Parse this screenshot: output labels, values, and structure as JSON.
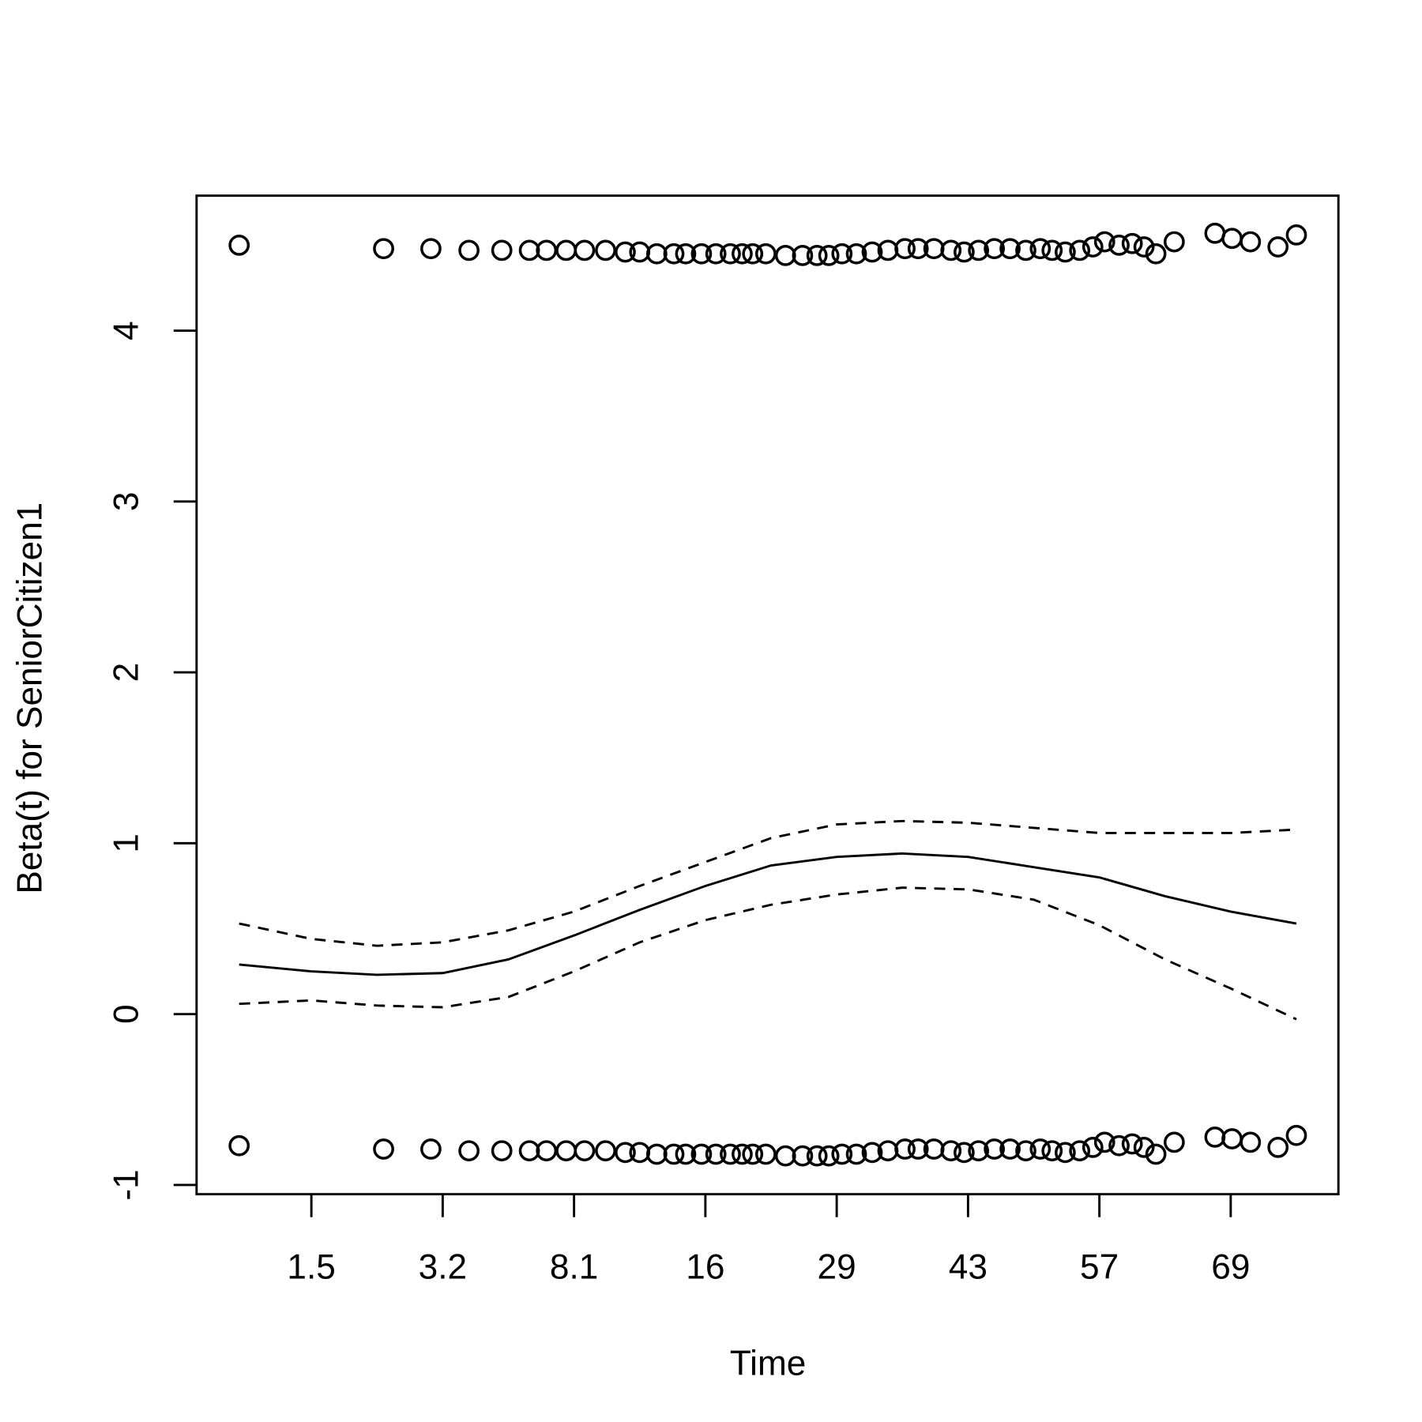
{
  "chart_data": {
    "type": "line",
    "xlabel": "Time",
    "ylabel": "Beta(t) for SeniorCitizen1",
    "color": "#000000",
    "xlim": [
      0.0126,
      0.882
    ],
    "xticks": [
      {
        "value": 0.1,
        "label": "1.5"
      },
      {
        "value": 0.2,
        "label": "3.2"
      },
      {
        "value": 0.3,
        "label": "8.1"
      },
      {
        "value": 0.4,
        "label": "16"
      },
      {
        "value": 0.5,
        "label": "29"
      },
      {
        "value": 0.6,
        "label": "43"
      },
      {
        "value": 0.7,
        "label": "57"
      },
      {
        "value": 0.8,
        "label": "69"
      }
    ],
    "ylim": [
      -1.054,
      4.79
    ],
    "yticks": [
      -1,
      0,
      1,
      2,
      3,
      4
    ],
    "x": [
      0.045,
      0.1,
      0.15,
      0.2,
      0.25,
      0.3,
      0.35,
      0.4,
      0.45,
      0.5,
      0.55,
      0.6,
      0.65,
      0.7,
      0.75,
      0.8,
      0.85
    ],
    "series": [
      {
        "style": "solid",
        "values": [
          0.29,
          0.25,
          0.23,
          0.24,
          0.32,
          0.46,
          0.61,
          0.75,
          0.87,
          0.92,
          0.94,
          0.92,
          0.86,
          0.8,
          0.69,
          0.6,
          0.53
        ]
      },
      {
        "style": "dashed",
        "values": [
          0.53,
          0.44,
          0.4,
          0.42,
          0.49,
          0.6,
          0.75,
          0.89,
          1.03,
          1.11,
          1.13,
          1.12,
          1.09,
          1.06,
          1.06,
          1.06,
          1.08
        ]
      },
      {
        "style": "dashed",
        "values": [
          0.06,
          0.08,
          0.05,
          0.04,
          0.1,
          0.25,
          0.42,
          0.55,
          0.64,
          0.7,
          0.74,
          0.73,
          0.67,
          0.52,
          0.32,
          0.15,
          -0.03
        ]
      }
    ],
    "points": {
      "x": [
        0.045,
        0.155,
        0.191,
        0.22,
        0.245,
        0.266,
        0.279,
        0.294,
        0.308,
        0.324,
        0.339,
        0.35,
        0.363,
        0.376,
        0.385,
        0.397,
        0.408,
        0.419,
        0.428,
        0.436,
        0.446,
        0.461,
        0.474,
        0.485,
        0.494,
        0.504,
        0.515,
        0.527,
        0.539,
        0.552,
        0.562,
        0.574,
        0.587,
        0.597,
        0.608,
        0.62,
        0.632,
        0.644,
        0.655,
        0.664,
        0.674,
        0.685,
        0.695,
        0.704,
        0.715,
        0.725,
        0.734,
        0.743,
        0.757,
        0.788,
        0.801,
        0.815,
        0.836,
        0.85
      ],
      "series": [
        {
          "values": [
            4.5,
            4.48,
            4.48,
            4.47,
            4.47,
            4.47,
            4.47,
            4.47,
            4.47,
            4.47,
            4.46,
            4.46,
            4.45,
            4.45,
            4.45,
            4.45,
            4.45,
            4.45,
            4.45,
            4.45,
            4.45,
            4.44,
            4.44,
            4.44,
            4.44,
            4.45,
            4.45,
            4.46,
            4.47,
            4.48,
            4.48,
            4.48,
            4.47,
            4.46,
            4.47,
            4.48,
            4.48,
            4.47,
            4.48,
            4.47,
            4.46,
            4.47,
            4.49,
            4.52,
            4.5,
            4.51,
            4.49,
            4.45,
            4.52,
            4.57,
            4.54,
            4.52,
            4.49,
            4.56
          ]
        },
        {
          "values": [
            -0.77,
            -0.79,
            -0.79,
            -0.8,
            -0.8,
            -0.8,
            -0.8,
            -0.8,
            -0.8,
            -0.8,
            -0.81,
            -0.81,
            -0.82,
            -0.82,
            -0.82,
            -0.82,
            -0.82,
            -0.82,
            -0.82,
            -0.82,
            -0.82,
            -0.83,
            -0.83,
            -0.83,
            -0.83,
            -0.82,
            -0.82,
            -0.81,
            -0.8,
            -0.79,
            -0.79,
            -0.79,
            -0.8,
            -0.81,
            -0.8,
            -0.79,
            -0.79,
            -0.8,
            -0.79,
            -0.8,
            -0.81,
            -0.8,
            -0.78,
            -0.75,
            -0.77,
            -0.76,
            -0.78,
            -0.82,
            -0.75,
            -0.72,
            -0.73,
            -0.75,
            -0.78,
            -0.71
          ]
        }
      ]
    }
  }
}
